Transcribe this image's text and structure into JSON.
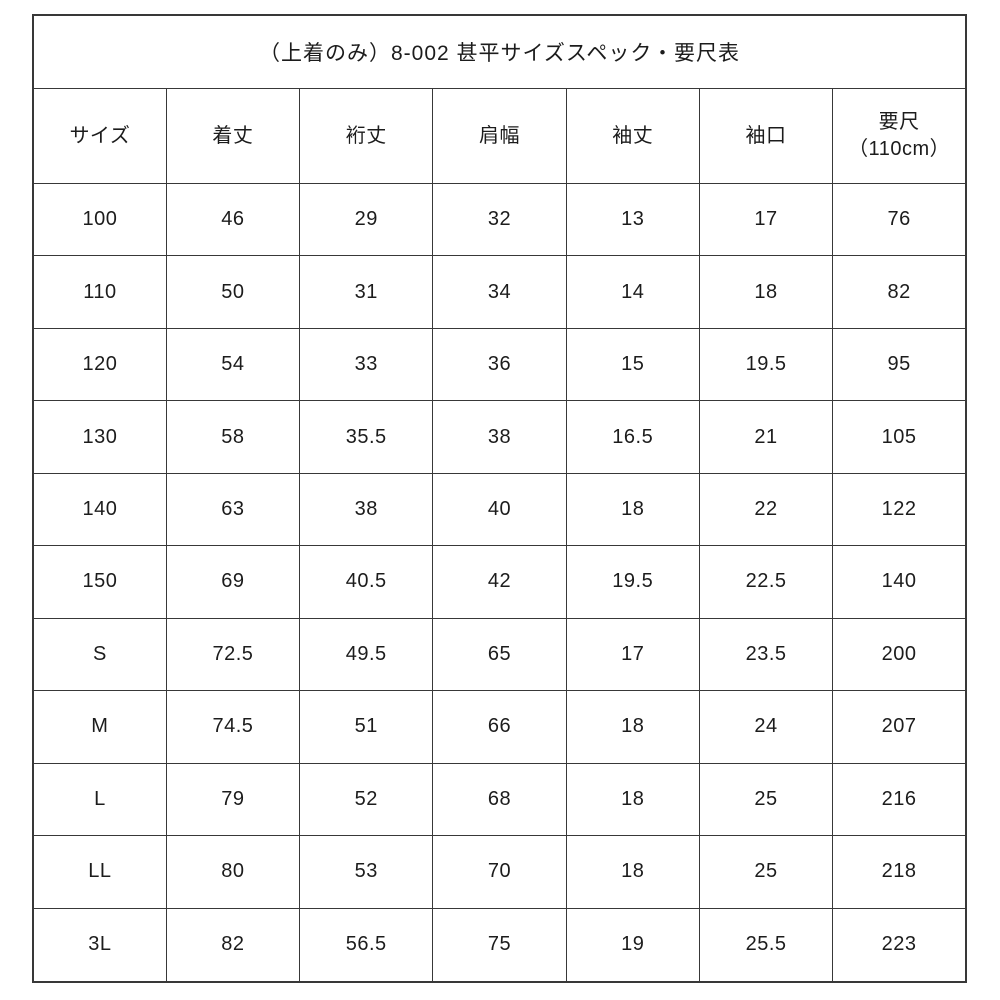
{
  "title": "（上着のみ）8-002 甚平サイズスペック・要尺表",
  "headers": {
    "col1": "サイズ",
    "col2": "着丈",
    "col3": "裄丈",
    "col4": "肩幅",
    "col5": "袖丈",
    "col6": "袖口",
    "col7_line1": "要尺",
    "col7_line2": "（110cm）"
  },
  "chart_data": {
    "type": "table",
    "title": "（上着のみ）8-002 甚平サイズスペック・要尺表",
    "columns": [
      "サイズ",
      "着丈",
      "裄丈",
      "肩幅",
      "袖丈",
      "袖口",
      "要尺（110cm）"
    ],
    "rows": [
      [
        "100",
        "46",
        "29",
        "32",
        "13",
        "17",
        "76"
      ],
      [
        "110",
        "50",
        "31",
        "34",
        "14",
        "18",
        "82"
      ],
      [
        "120",
        "54",
        "33",
        "36",
        "15",
        "19.5",
        "95"
      ],
      [
        "130",
        "58",
        "35.5",
        "38",
        "16.5",
        "21",
        "105"
      ],
      [
        "140",
        "63",
        "38",
        "40",
        "18",
        "22",
        "122"
      ],
      [
        "150",
        "69",
        "40.5",
        "42",
        "19.5",
        "22.5",
        "140"
      ],
      [
        "S",
        "72.5",
        "49.5",
        "65",
        "17",
        "23.5",
        "200"
      ],
      [
        "M",
        "74.5",
        "51",
        "66",
        "18",
        "24",
        "207"
      ],
      [
        "L",
        "79",
        "52",
        "68",
        "18",
        "25",
        "216"
      ],
      [
        "LL",
        "80",
        "53",
        "70",
        "18",
        "25",
        "218"
      ],
      [
        "3L",
        "82",
        "56.5",
        "75",
        "19",
        "25.5",
        "223"
      ]
    ],
    "layout": {
      "grid": true,
      "border_color": "#383838",
      "text_color": "#1c1c1c",
      "background": "#ffffff"
    }
  }
}
